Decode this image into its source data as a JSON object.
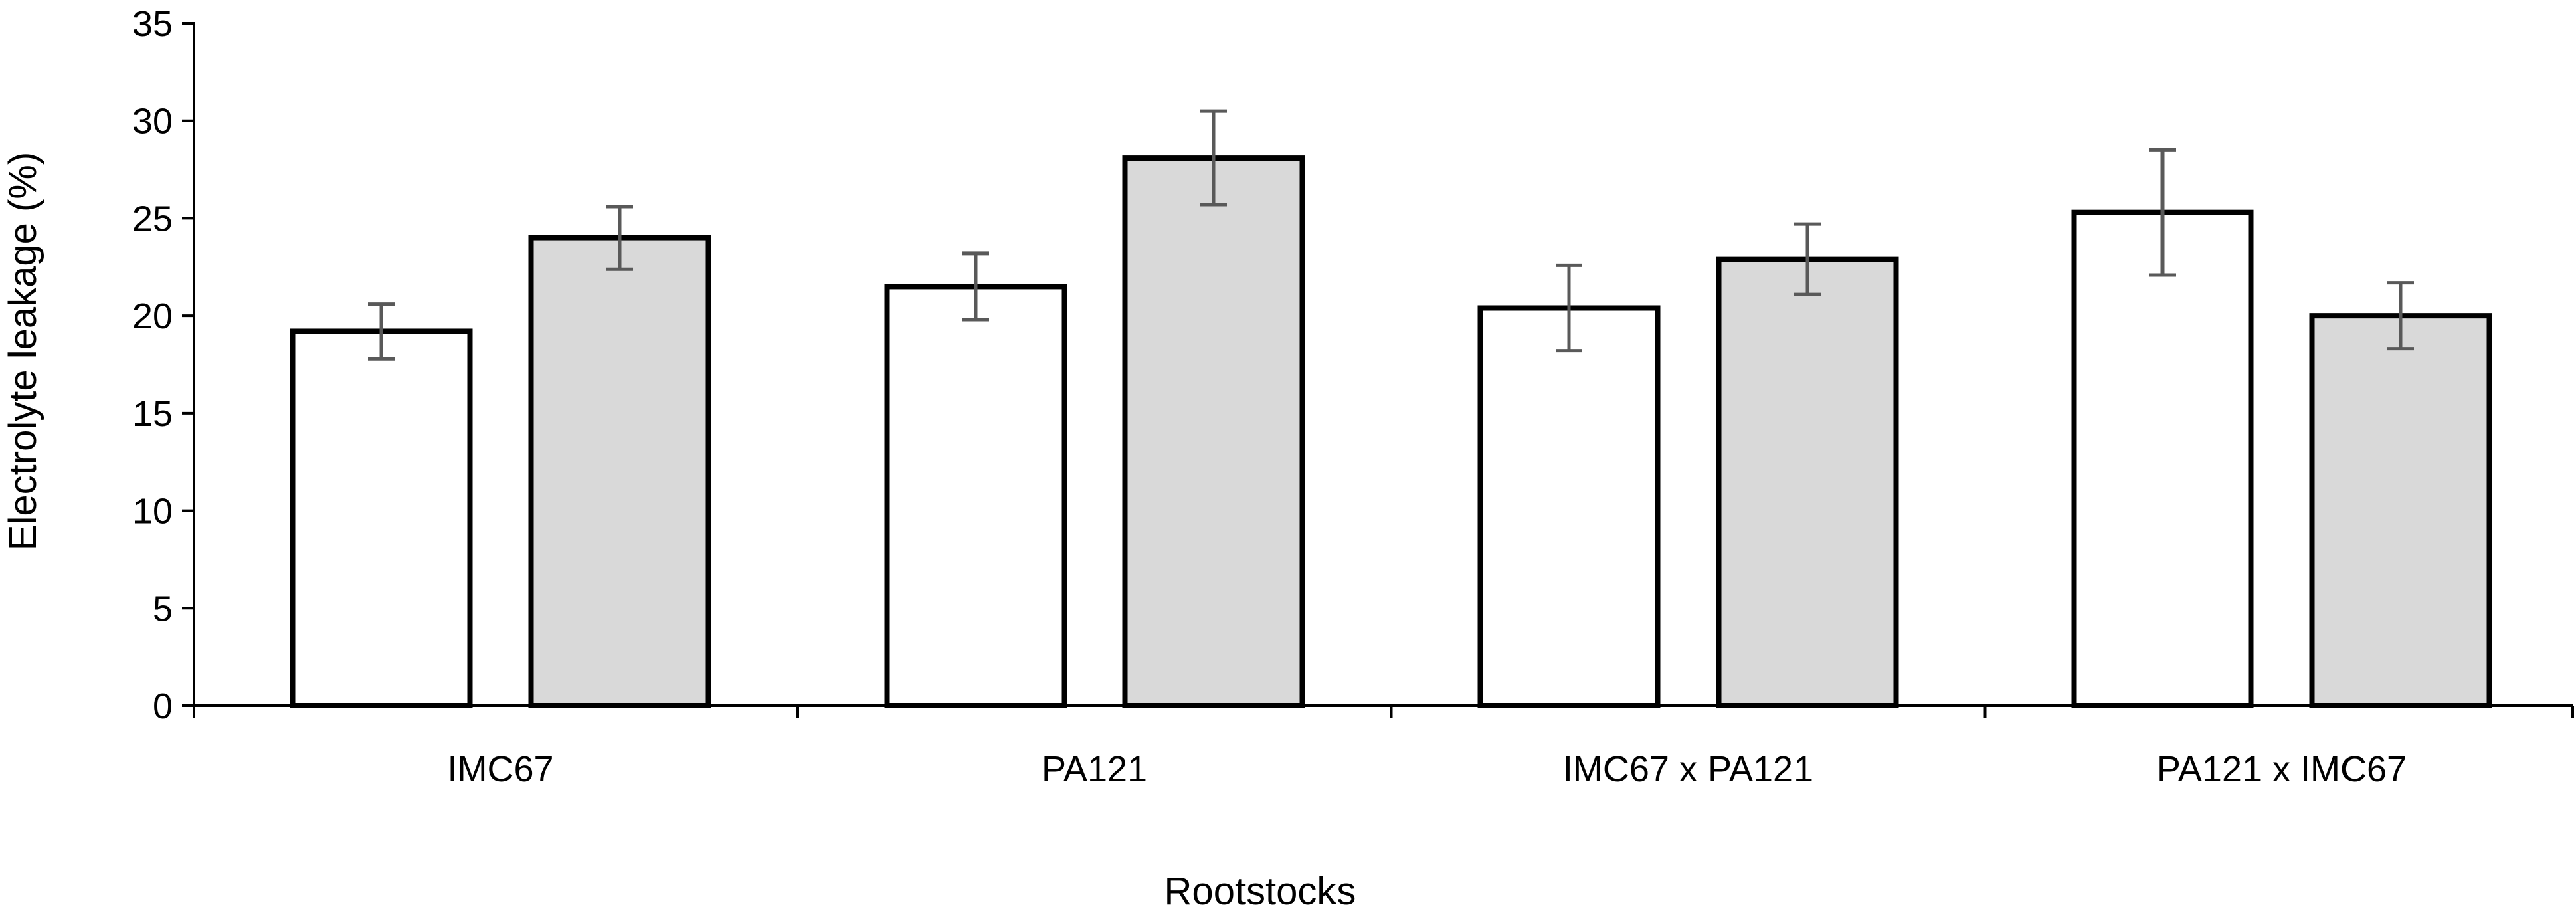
{
  "chart_data": {
    "type": "bar",
    "title": "",
    "xlabel": "Rootstocks",
    "ylabel": "Electrolyte leakage (%)",
    "ylim": [
      0,
      35
    ],
    "yticks": [
      0,
      5,
      10,
      15,
      20,
      25,
      30,
      35
    ],
    "grid": false,
    "legend": "none",
    "categories": [
      "IMC67",
      "PA121",
      "IMC67 x PA121",
      "PA121 x IMC67"
    ],
    "series": [
      {
        "values": [
          19.2,
          21.5,
          20.4,
          25.3
        ],
        "errors": [
          1.4,
          1.7,
          2.2,
          3.2
        ],
        "fill": "#ffffff"
      },
      {
        "values": [
          24.0,
          28.1,
          22.9,
          20.0
        ],
        "errors": [
          1.6,
          2.4,
          1.8,
          1.7
        ],
        "fill": "#d9d9d9"
      }
    ],
    "colors": {
      "bar_outline": "#000000",
      "error_bar": "#595959",
      "axis": "#000000"
    }
  }
}
